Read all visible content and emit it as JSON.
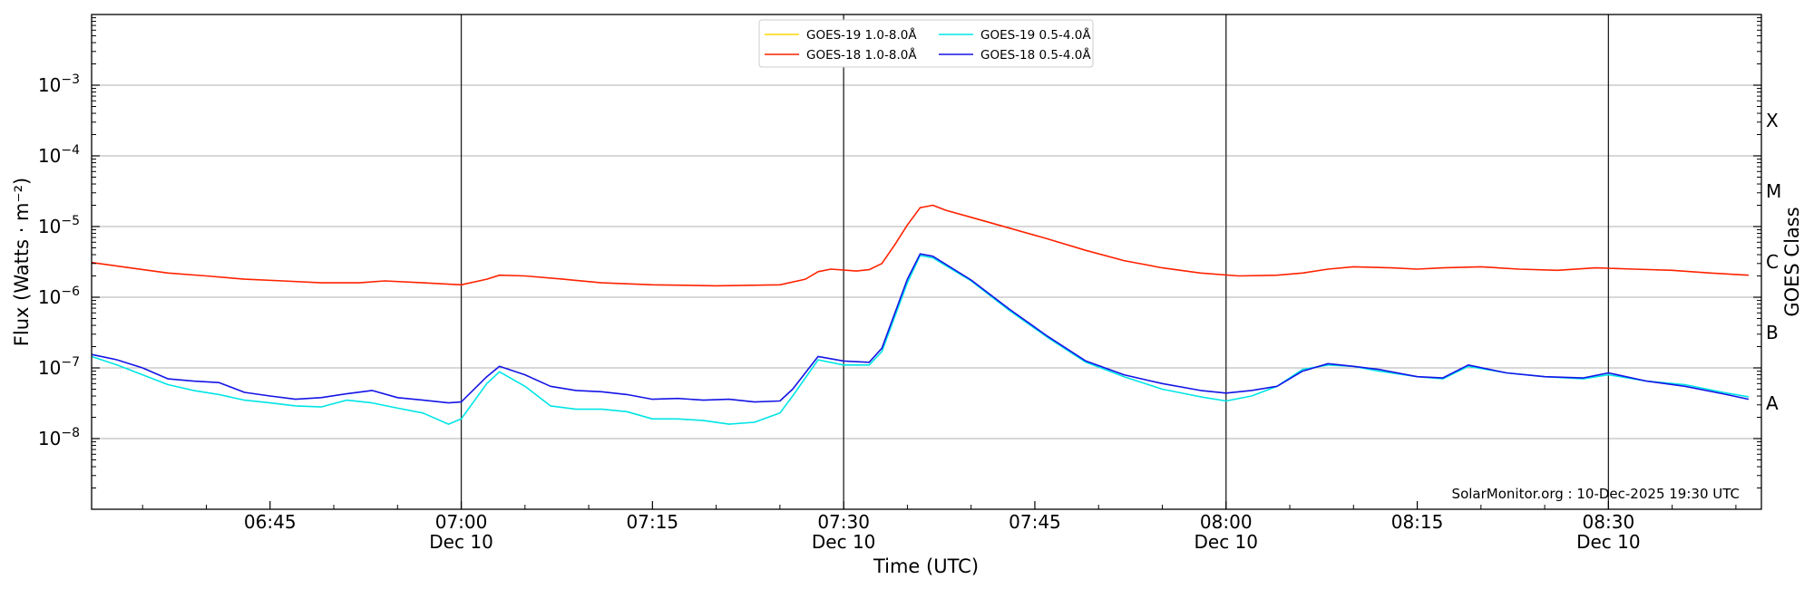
{
  "chart_data": {
    "type": "line",
    "title": "",
    "xlabel": "Time (UTC)",
    "ylabel": "Flux (Watts · m⁻²)",
    "y2label": "GOES Class",
    "yscale": "log",
    "ylim": [
      1e-09,
      0.01
    ],
    "xlim": [
      "06:31",
      "08:42"
    ],
    "grid": "horizontal",
    "legend_position": "top-center",
    "credit": "SolarMonitor.org : 10-Dec-2025 19:30 UTC",
    "x_ticks": [
      {
        "time": "06:45",
        "label": "06:45",
        "sub": ""
      },
      {
        "time": "07:00",
        "label": "07:00",
        "sub": "Dec 10"
      },
      {
        "time": "07:15",
        "label": "07:15",
        "sub": ""
      },
      {
        "time": "07:30",
        "label": "07:30",
        "sub": "Dec 10"
      },
      {
        "time": "07:45",
        "label": "07:45",
        "sub": ""
      },
      {
        "time": "08:00",
        "label": "08:00",
        "sub": "Dec 10"
      },
      {
        "time": "08:15",
        "label": "08:15",
        "sub": ""
      },
      {
        "time": "08:30",
        "label": "08:30",
        "sub": "Dec 10"
      }
    ],
    "vertical_lines": [
      "07:00",
      "07:30",
      "08:00",
      "08:30"
    ],
    "y_ticks": [
      {
        "value": 1e-08,
        "base": "10",
        "exp": "−8"
      },
      {
        "value": 1e-07,
        "base": "10",
        "exp": "−7"
      },
      {
        "value": 1e-06,
        "base": "10",
        "exp": "−6"
      },
      {
        "value": 1e-05,
        "base": "10",
        "exp": "−5"
      },
      {
        "value": 0.0001,
        "base": "10",
        "exp": "−4"
      },
      {
        "value": 0.001,
        "base": "10",
        "exp": "−3"
      }
    ],
    "goes_classes": [
      {
        "label": "A",
        "value": 3.16e-08
      },
      {
        "label": "B",
        "value": 3.16e-07
      },
      {
        "label": "C",
        "value": 3.16e-06
      },
      {
        "label": "M",
        "value": 3.16e-05
      },
      {
        "label": "X",
        "value": 0.000316
      }
    ],
    "series": [
      {
        "name": "GOES-19 1.0-8.0Å",
        "color": "#ffd700",
        "x": [],
        "y": []
      },
      {
        "name": "GOES-18 1.0-8.0Å",
        "color": "#ff2200",
        "x": [
          "06:31",
          "06:34",
          "06:37",
          "06:40",
          "06:43",
          "06:46",
          "06:49",
          "06:52",
          "06:54",
          "06:57",
          "07:00",
          "07:02",
          "07:03",
          "07:05",
          "07:08",
          "07:11",
          "07:15",
          "07:20",
          "07:25",
          "07:27",
          "07:28",
          "07:29",
          "07:31",
          "07:32",
          "07:33",
          "07:34",
          "07:35",
          "07:36",
          "07:37",
          "07:38",
          "07:40",
          "07:43",
          "07:46",
          "07:49",
          "07:52",
          "07:55",
          "07:58",
          "08:01",
          "08:04",
          "08:06",
          "08:08",
          "08:10",
          "08:13",
          "08:15",
          "08:17",
          "08:20",
          "08:23",
          "08:26",
          "08:29",
          "08:32",
          "08:35",
          "08:38",
          "08:41"
        ],
        "y": [
          3.1e-06,
          2.6e-06,
          2.2e-06,
          2e-06,
          1.8e-06,
          1.7e-06,
          1.6e-06,
          1.6e-06,
          1.7e-06,
          1.6e-06,
          1.5e-06,
          1.8e-06,
          2.05e-06,
          2e-06,
          1.8e-06,
          1.6e-06,
          1.5e-06,
          1.45e-06,
          1.5e-06,
          1.8e-06,
          2.3e-06,
          2.5e-06,
          2.35e-06,
          2.45e-06,
          3e-06,
          5.5e-06,
          1.05e-05,
          1.85e-05,
          2e-05,
          1.7e-05,
          1.35e-05,
          9.5e-06,
          6.7e-06,
          4.6e-06,
          3.3e-06,
          2.6e-06,
          2.2e-06,
          2e-06,
          2.05e-06,
          2.2e-06,
          2.5e-06,
          2.7e-06,
          2.6e-06,
          2.5e-06,
          2.6e-06,
          2.7e-06,
          2.5e-06,
          2.4e-06,
          2.6e-06,
          2.5e-06,
          2.4e-06,
          2.2e-06,
          2.05e-06
        ]
      },
      {
        "name": "GOES-19 0.5-4.0Å",
        "color": "#00e5e5",
        "x": [
          "06:31",
          "06:33",
          "06:35",
          "06:37",
          "06:39",
          "06:41",
          "06:43",
          "06:45",
          "06:47",
          "06:49",
          "06:51",
          "06:53",
          "06:55",
          "06:57",
          "06:59",
          "07:00",
          "07:02",
          "07:03",
          "07:05",
          "07:07",
          "07:09",
          "07:11",
          "07:13",
          "07:15",
          "07:17",
          "07:19",
          "07:21",
          "07:23",
          "07:25",
          "07:26",
          "07:28",
          "07:30",
          "07:32",
          "07:33",
          "07:35",
          "07:36",
          "07:37",
          "07:40",
          "07:43",
          "07:46",
          "07:49",
          "07:52",
          "07:55",
          "07:58",
          "08:00",
          "08:02",
          "08:04",
          "08:06",
          "08:08",
          "08:10",
          "08:12",
          "08:15",
          "08:17",
          "08:19",
          "08:22",
          "08:25",
          "08:28",
          "08:30",
          "08:33",
          "08:36",
          "08:39",
          "08:41"
        ],
        "y": [
          1.45e-07,
          1.1e-07,
          8e-08,
          5.8e-08,
          4.8e-08,
          4.2e-08,
          3.5e-08,
          3.2e-08,
          2.9e-08,
          2.8e-08,
          3.5e-08,
          3.2e-08,
          2.7e-08,
          2.3e-08,
          1.6e-08,
          1.9e-08,
          6e-08,
          8.8e-08,
          5.5e-08,
          2.9e-08,
          2.6e-08,
          2.6e-08,
          2.4e-08,
          1.9e-08,
          1.9e-08,
          1.8e-08,
          1.6e-08,
          1.7e-08,
          2.3e-08,
          4e-08,
          1.3e-07,
          1.1e-07,
          1.1e-07,
          1.7e-07,
          1.6e-06,
          3.9e-06,
          3.6e-06,
          1.7e-06,
          6.5e-07,
          2.7e-07,
          1.2e-07,
          7.5e-08,
          5e-08,
          3.9e-08,
          3.4e-08,
          4e-08,
          5.5e-08,
          9.5e-08,
          1.1e-07,
          1.05e-07,
          9e-08,
          7.5e-08,
          7e-08,
          1.05e-07,
          8.5e-08,
          7.5e-08,
          7e-08,
          8e-08,
          6.5e-08,
          5.8e-08,
          4.5e-08,
          3.9e-08
        ]
      },
      {
        "name": "GOES-18 0.5-4.0Å",
        "color": "#1414e6",
        "x": [
          "06:31",
          "06:33",
          "06:35",
          "06:37",
          "06:39",
          "06:41",
          "06:43",
          "06:45",
          "06:47",
          "06:49",
          "06:51",
          "06:53",
          "06:55",
          "06:57",
          "06:59",
          "07:00",
          "07:02",
          "07:03",
          "07:05",
          "07:07",
          "07:09",
          "07:11",
          "07:13",
          "07:15",
          "07:17",
          "07:19",
          "07:21",
          "07:23",
          "07:25",
          "07:26",
          "07:28",
          "07:30",
          "07:32",
          "07:33",
          "07:35",
          "07:36",
          "07:37",
          "07:40",
          "07:43",
          "07:46",
          "07:49",
          "07:52",
          "07:55",
          "07:58",
          "08:00",
          "08:02",
          "08:04",
          "08:06",
          "08:08",
          "08:10",
          "08:12",
          "08:15",
          "08:17",
          "08:19",
          "08:22",
          "08:25",
          "08:28",
          "08:30",
          "08:33",
          "08:36",
          "08:39",
          "08:41"
        ],
        "y": [
          1.55e-07,
          1.3e-07,
          1e-07,
          7e-08,
          6.5e-08,
          6.2e-08,
          4.5e-08,
          4e-08,
          3.6e-08,
          3.8e-08,
          4.3e-08,
          4.8e-08,
          3.8e-08,
          3.5e-08,
          3.2e-08,
          3.3e-08,
          7.5e-08,
          1.05e-07,
          8e-08,
          5.5e-08,
          4.8e-08,
          4.6e-08,
          4.2e-08,
          3.6e-08,
          3.7e-08,
          3.5e-08,
          3.6e-08,
          3.3e-08,
          3.4e-08,
          5e-08,
          1.45e-07,
          1.25e-07,
          1.2e-07,
          1.9e-07,
          1.8e-06,
          4.1e-06,
          3.8e-06,
          1.75e-06,
          6.8e-07,
          2.8e-07,
          1.25e-07,
          8e-08,
          6e-08,
          4.8e-08,
          4.4e-08,
          4.8e-08,
          5.5e-08,
          9e-08,
          1.15e-07,
          1.05e-07,
          9.5e-08,
          7.5e-08,
          7.2e-08,
          1.1e-07,
          8.5e-08,
          7.5e-08,
          7.2e-08,
          8.5e-08,
          6.5e-08,
          5.5e-08,
          4.3e-08,
          3.6e-08
        ]
      }
    ]
  }
}
